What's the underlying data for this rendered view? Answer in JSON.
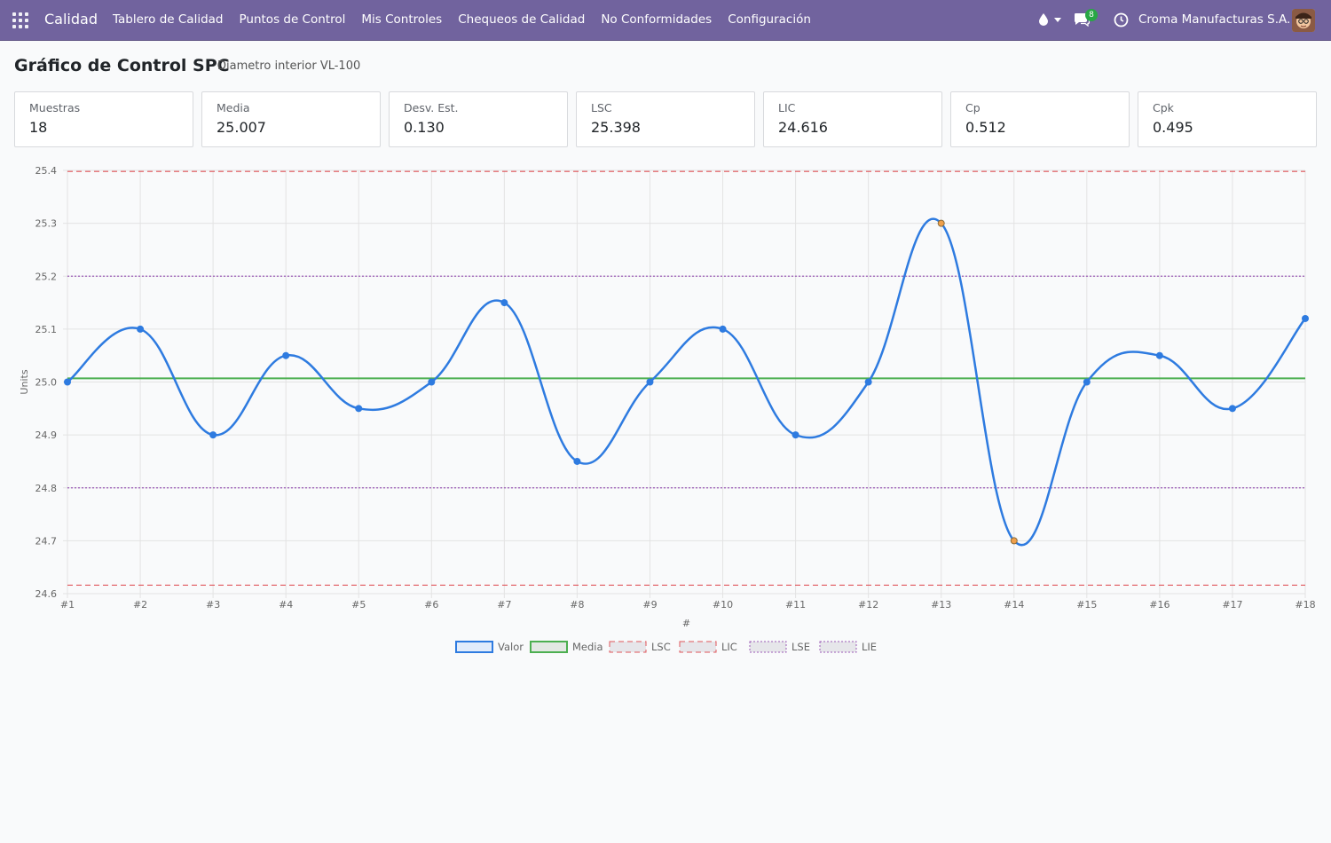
{
  "app": {
    "name": "Calidad",
    "menu": [
      "Tablero de Calidad",
      "Puntos de Control",
      "Mis Controles",
      "Chequeos de Calidad",
      "No Conformidades",
      "Configuración"
    ],
    "chat_count": "8",
    "company": "Croma Manufacturas S.A."
  },
  "page": {
    "title": "Gráfico de Control SPC",
    "subtitle": "Diametro interior VL-100"
  },
  "stats": [
    {
      "label": "Muestras",
      "value": "18"
    },
    {
      "label": "Media",
      "value": "25.007"
    },
    {
      "label": "Desv. Est.",
      "value": "0.130"
    },
    {
      "label": "LSC",
      "value": "25.398"
    },
    {
      "label": "LIC",
      "value": "24.616"
    },
    {
      "label": "Cp",
      "value": "0.512"
    },
    {
      "label": "Cpk",
      "value": "0.495"
    }
  ],
  "chart_data": {
    "type": "line",
    "xlabel": "#",
    "ylabel": "Units",
    "ylim": [
      24.6,
      25.4
    ],
    "yticks": [
      24.6,
      24.7,
      24.8,
      24.9,
      25.0,
      25.1,
      25.2,
      25.3,
      25.4
    ],
    "categories": [
      "#1",
      "#2",
      "#3",
      "#4",
      "#5",
      "#6",
      "#7",
      "#8",
      "#9",
      "#10",
      "#11",
      "#12",
      "#13",
      "#14",
      "#15",
      "#16",
      "#17",
      "#18"
    ],
    "grid": true,
    "legend_position": "bottom",
    "series": [
      {
        "name": "Valor",
        "color": "#2e7be0",
        "style": "solid",
        "values": [
          25.0,
          25.1,
          24.9,
          25.05,
          24.95,
          25.0,
          25.15,
          24.85,
          25.0,
          25.1,
          24.9,
          25.0,
          25.3,
          24.7,
          25.0,
          25.05,
          24.95,
          25.12
        ]
      },
      {
        "name": "Media",
        "color": "#4caf50",
        "style": "solid",
        "value": 25.007
      },
      {
        "name": "LSC",
        "color": "#e0565b",
        "style": "dashed",
        "value": 25.398
      },
      {
        "name": "LIC",
        "color": "#e0565b",
        "style": "dashed",
        "value": 24.616
      },
      {
        "name": "LSE",
        "color": "#9b59b6",
        "style": "dotted",
        "value": 25.2
      },
      {
        "name": "LIE",
        "color": "#9b59b6",
        "style": "dotted",
        "value": 24.8
      }
    ],
    "highlighted_points": [
      "#13",
      "#14"
    ],
    "highlight_color": "#f0a04b"
  }
}
